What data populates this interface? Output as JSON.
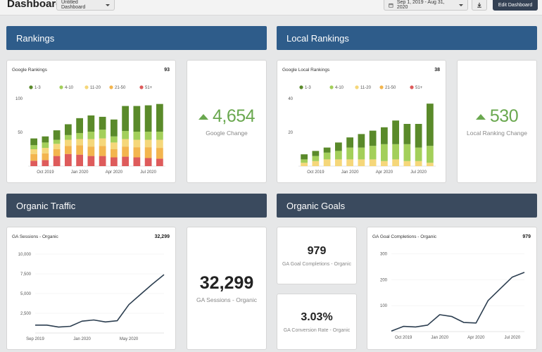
{
  "header": {
    "title": "Dashboard",
    "dashboard_select": "Untitled Dashboard",
    "date_range": "Sep 1, 2019 - Aug 31, 2020",
    "edit_button": "Edit Dashboard"
  },
  "sections": {
    "rankings": "Rankings",
    "local_rankings": "Local Rankings",
    "organic_traffic": "Organic Traffic",
    "organic_goals": "Organic Goals"
  },
  "colors": {
    "r1_3": "#5a8a2a",
    "r4_10": "#a3cf5a",
    "r11_20": "#f5d77a",
    "r21_50": "#f3b54e",
    "r51": "#de5b5b",
    "line": "#2c3e50",
    "positive": "#6aa84f"
  },
  "cards": {
    "google_rankings": {
      "title": "Google Rankings",
      "count": "93"
    },
    "google_change": {
      "value": "4,654",
      "label": "Google Change"
    },
    "local_rankings": {
      "title": "Google Local Rankings",
      "count": "38"
    },
    "local_change": {
      "value": "530",
      "label": "Local Ranking Change"
    },
    "ga_sessions": {
      "title": "GA Sessions - Organic",
      "count": "32,299"
    },
    "ga_sessions_kpi": {
      "value": "32,299",
      "label": "GA Sessions - Organic"
    },
    "goal_completions_kpi": {
      "value": "979",
      "label": "GA Goal Completions - Organic"
    },
    "conversion_rate_kpi": {
      "value": "3.03%",
      "label": "GA Conversion Rate - Organic"
    },
    "goal_completions_chart": {
      "title": "GA Goal Completions - Organic",
      "count": "979"
    }
  },
  "chart_data": [
    {
      "id": "google_rankings_chart",
      "type": "bar",
      "stacked": true,
      "legend": [
        "1-3",
        "4-10",
        "11-20",
        "21-50",
        "51+"
      ],
      "legend_position": "top",
      "ylim": [
        0,
        100
      ],
      "yticks": [
        100,
        50
      ],
      "xtick_labels": [
        {
          "index": 1,
          "label": "Oct 2019"
        },
        {
          "index": 4,
          "label": "Jan 2020"
        },
        {
          "index": 7,
          "label": "Apr 2020"
        },
        {
          "index": 10,
          "label": "Jul 2020"
        }
      ],
      "series": [
        {
          "name": "51+",
          "values": [
            8,
            9,
            15,
            18,
            17,
            15,
            15,
            13,
            14,
            13,
            12,
            11
          ]
        },
        {
          "name": "21-50",
          "values": [
            10,
            10,
            10,
            12,
            14,
            14,
            15,
            12,
            15,
            15,
            16,
            16
          ]
        },
        {
          "name": "11-20",
          "values": [
            7,
            8,
            8,
            9,
            9,
            11,
            11,
            10,
            11,
            11,
            11,
            12
          ]
        },
        {
          "name": "4-10",
          "values": [
            6,
            8,
            6,
            7,
            9,
            11,
            13,
            9,
            12,
            12,
            12,
            12
          ]
        },
        {
          "name": "1-3",
          "values": [
            10,
            9,
            14,
            16,
            22,
            24,
            19,
            25,
            37,
            38,
            39,
            41
          ]
        }
      ]
    },
    {
      "id": "local_rankings_chart",
      "type": "bar",
      "stacked": true,
      "legend": [
        "1-3",
        "4-10",
        "11-20",
        "21-50",
        "51+"
      ],
      "legend_position": "top",
      "ylim": [
        0,
        40
      ],
      "yticks": [
        40,
        20
      ],
      "xtick_labels": [
        {
          "index": 1,
          "label": "Oct 2019"
        },
        {
          "index": 4,
          "label": "Jan 2020"
        },
        {
          "index": 7,
          "label": "Apr 2020"
        },
        {
          "index": 10,
          "label": "Jul 2020"
        }
      ],
      "series": [
        {
          "name": "51+",
          "values": [
            0,
            0,
            0,
            0,
            0,
            0,
            0,
            0,
            0,
            0,
            0,
            0
          ]
        },
        {
          "name": "21-50",
          "values": [
            0,
            0,
            0,
            0,
            0,
            0,
            0,
            0,
            0,
            0,
            0,
            0
          ]
        },
        {
          "name": "11-20",
          "values": [
            2,
            3,
            4,
            4,
            4,
            4,
            4,
            3,
            4,
            3,
            3,
            2
          ]
        },
        {
          "name": "4-10",
          "values": [
            2,
            3,
            4,
            5,
            7,
            7,
            8,
            10,
            9,
            10,
            8,
            10
          ]
        },
        {
          "name": "1-3",
          "values": [
            3,
            3,
            3,
            5,
            6,
            8,
            9,
            10,
            14,
            12,
            14,
            25
          ]
        }
      ]
    },
    {
      "id": "ga_sessions_chart",
      "type": "line",
      "x": [
        "Sep 2019",
        "Oct 2019",
        "Nov 2019",
        "Dec 2019",
        "Jan 2020",
        "Feb 2020",
        "Mar 2020",
        "Apr 2020",
        "May 2020",
        "Jun 2020",
        "Jul 2020",
        "Aug 2020"
      ],
      "xtick_labels": [
        {
          "index": 0,
          "label": "Sep 2019"
        },
        {
          "index": 4,
          "label": "Jan 2020"
        },
        {
          "index": 8,
          "label": "May 2020"
        }
      ],
      "ylim": [
        0,
        10000
      ],
      "yticks": [
        10000,
        7500,
        5000,
        2500
      ],
      "ytick_labels": [
        "10,000",
        "7,500",
        "5,000",
        "2,500"
      ],
      "series": [
        {
          "values": [
            1000,
            1000,
            750,
            850,
            1500,
            1650,
            1400,
            1550,
            3600,
            4900,
            6200,
            7400
          ]
        }
      ]
    },
    {
      "id": "goal_completions_chart",
      "type": "line",
      "x": [
        "Sep 2019",
        "Oct 2019",
        "Nov 2019",
        "Dec 2019",
        "Jan 2020",
        "Feb 2020",
        "Mar 2020",
        "Apr 2020",
        "May 2020",
        "Jun 2020",
        "Jul 2020",
        "Aug 2020"
      ],
      "xtick_labels": [
        {
          "index": 1,
          "label": "Oct 2019"
        },
        {
          "index": 4,
          "label": "Jan 2020"
        },
        {
          "index": 7,
          "label": "Apr 2020"
        },
        {
          "index": 10,
          "label": "Jul 2020"
        }
      ],
      "ylim": [
        0,
        320
      ],
      "yticks": [
        300,
        200,
        100
      ],
      "series": [
        {
          "values": [
            2,
            20,
            18,
            25,
            65,
            58,
            35,
            33,
            120,
            165,
            210,
            228
          ]
        }
      ]
    }
  ]
}
